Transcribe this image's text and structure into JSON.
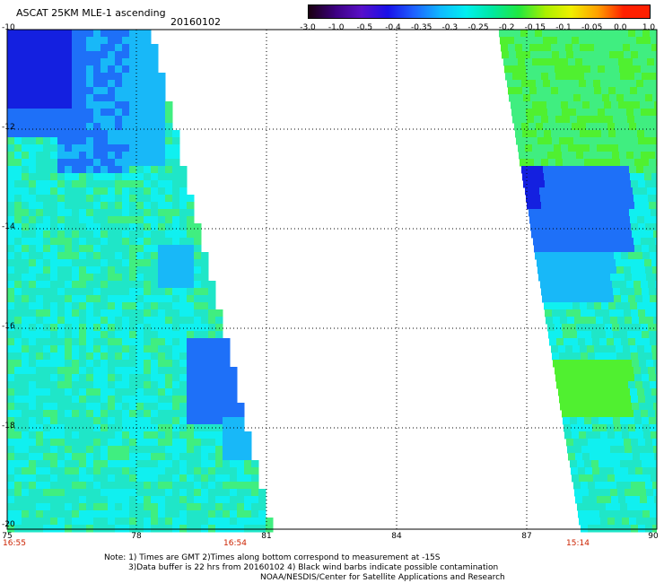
{
  "header": {
    "title": "ASCAT 25KM MLE-1 ascending",
    "date": "20160102"
  },
  "colorbar": {
    "labels": [
      "-3.0",
      "-1.0",
      "-0.5",
      "-0.4",
      "-0.35",
      "-0.3",
      "-0.25",
      "-0.2",
      "-0.15",
      "-0.1",
      "-0.05",
      "0.0",
      "1.0"
    ],
    "colors": [
      "#1a0010",
      "#3c0080",
      "#5a10c8",
      "#1a10e8",
      "#1e60ff",
      "#10b8ff",
      "#00f0f0",
      "#00e8a0",
      "#20e840",
      "#a8f000",
      "#f0f000",
      "#ffa000",
      "#ff2000"
    ]
  },
  "map": {
    "y_ticks": [
      "-10",
      "-12",
      "-14",
      "-16",
      "-18",
      "-20"
    ],
    "x_ticks": [
      "75",
      "78",
      "81",
      "84",
      "87",
      "90"
    ],
    "time_labels": [
      "16:55",
      "16:54",
      "15:14"
    ],
    "swath_colors": {
      "background": "#1fe6c8",
      "cyan": "#10f0f0",
      "green": "#40ee80",
      "blue_light": "#18b8f8",
      "blue_mid": "#1e70f8",
      "blue_deep": "#1420e0",
      "lime": "#50f030"
    }
  },
  "notes": {
    "line1": "Note: 1) Times are GMT 2)Times along bottom correspond to measurement at -15S",
    "line2": "3)Data buffer is 22 hrs from 20160102 4) Black wind barbs indicate possible contamination",
    "line3": "NOAA/NESDIS/Center for Satellite Applications and Research"
  }
}
